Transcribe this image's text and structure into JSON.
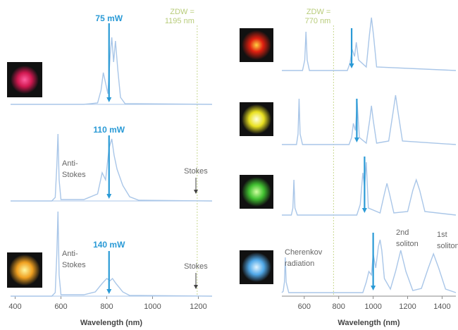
{
  "chart_data": [
    {
      "type": "line",
      "x_label": "Wavelength (nm)",
      "xlim": [
        380,
        1260
      ],
      "xticks": [
        400,
        600,
        800,
        1000,
        1200
      ],
      "zdw": 1195,
      "zdw_label": [
        "ZDW =",
        "1195 nm"
      ],
      "annotations": [
        {
          "lines": [
            "Anti-",
            "Stokes"
          ]
        },
        {
          "lines": [
            "Stokes"
          ]
        },
        {
          "lines": [
            "Anti-",
            "Stokes"
          ]
        },
        {
          "lines": [
            "Stokes"
          ]
        }
      ],
      "series": [
        {
          "name": "75 mW",
          "color": "#a9c6e8",
          "pump": 810,
          "x": [
            380,
            700,
            760,
            775,
            785,
            795,
            805,
            815,
            822,
            830,
            838,
            848,
            860,
            880,
            1260
          ],
          "values": [
            0,
            0,
            0.02,
            0.2,
            0.45,
            0.3,
            0.15,
            0.7,
            0.95,
            0.6,
            0.9,
            0.5,
            0.1,
            0.01,
            0
          ]
        },
        {
          "name": "110 mW",
          "color": "#a9c6e8",
          "pump": 810,
          "x": [
            380,
            560,
            575,
            582,
            587,
            592,
            600,
            700,
            760,
            780,
            795,
            810,
            822,
            832,
            845,
            870,
            900,
            940,
            1260
          ],
          "values": [
            0,
            0,
            0.05,
            0.5,
            0.95,
            0.3,
            0.02,
            0.02,
            0.1,
            0.4,
            0.3,
            0.75,
            0.88,
            0.65,
            0.45,
            0.22,
            0.06,
            0.01,
            0
          ]
        },
        {
          "name": "140 mW",
          "color": "#a9c6e8",
          "pump": 810,
          "x": [
            380,
            560,
            575,
            582,
            587,
            592,
            600,
            700,
            750,
            780,
            800,
            815,
            825,
            840,
            870,
            900,
            1260
          ],
          "values": [
            0,
            0,
            0.05,
            0.6,
            1.2,
            0.3,
            0.02,
            0.02,
            0.06,
            0.18,
            0.25,
            0.22,
            0.25,
            0.18,
            0.06,
            0.01,
            0
          ]
        }
      ]
    },
    {
      "type": "line",
      "x_label": "Wavelength (nm)",
      "xlim": [
        470,
        1480
      ],
      "xticks": [
        600,
        800,
        1000,
        1200,
        1400
      ],
      "zdw": 770,
      "zdw_label": [
        "ZDW =",
        "770 nm"
      ],
      "annotations": [
        {
          "lines": [
            "Cherenkov",
            "radiation"
          ]
        },
        {
          "lines": [
            "2nd",
            "soliton"
          ]
        },
        {
          "lines": [
            "1st",
            "soliton"
          ]
        }
      ],
      "series": [
        {
          "color": "#a9c6e8",
          "pump": 875,
          "x": [
            470,
            590,
            603,
            610,
            617,
            630,
            850,
            865,
            878,
            892,
            902,
            915,
            960,
            978,
            990,
            1002,
            1020,
            1480
          ],
          "values": [
            0,
            0,
            0.15,
            0.55,
            0.15,
            0,
            0,
            0.1,
            0.3,
            0.2,
            0.4,
            0.15,
            0.05,
            0.5,
            0.75,
            0.5,
            0.05,
            0
          ]
        },
        {
          "color": "#a9c6e8",
          "pump": 905,
          "x": [
            470,
            555,
            564,
            570,
            576,
            590,
            860,
            875,
            885,
            897,
            907,
            920,
            960,
            980,
            990,
            1000,
            1020,
            1090,
            1115,
            1130,
            1145,
            1170,
            1480
          ],
          "values": [
            0,
            0,
            0.15,
            0.65,
            0.15,
            0,
            0,
            0.1,
            0.3,
            0.2,
            0.6,
            0.1,
            0.02,
            0.35,
            0.55,
            0.35,
            0.02,
            0.05,
            0.45,
            0.7,
            0.45,
            0.05,
            0
          ]
        },
        {
          "color": "#a9c6e8",
          "pump": 950,
          "x": [
            470,
            525,
            534,
            540,
            546,
            560,
            905,
            925,
            940,
            950,
            960,
            972,
            1040,
            1065,
            1080,
            1095,
            1120,
            1200,
            1230,
            1250,
            1270,
            1300,
            1480
          ],
          "values": [
            0,
            0,
            0.1,
            0.5,
            0.1,
            0,
            0,
            0.15,
            0.6,
            0.4,
            0.75,
            0.1,
            0.03,
            0.3,
            0.45,
            0.3,
            0.03,
            0.05,
            0.35,
            0.5,
            0.35,
            0.05,
            0
          ]
        },
        {
          "color": "#a9c6e8",
          "pump": 1000,
          "x": [
            470,
            478,
            485,
            490,
            495,
            510,
            940,
            960,
            975,
            990,
            1000,
            1015,
            1030,
            1040,
            1050,
            1065,
            1100,
            1130,
            1160,
            1190,
            1230,
            1280,
            1320,
            1350,
            1380,
            1420,
            1480
          ],
          "values": [
            0,
            0.02,
            0.15,
            0.5,
            0.15,
            0,
            0,
            0.15,
            0.3,
            0.25,
            0.55,
            0.35,
            0.65,
            0.75,
            0.6,
            0.2,
            0.05,
            0.3,
            0.6,
            0.3,
            0.03,
            0.06,
            0.35,
            0.55,
            0.35,
            0.05,
            0
          ]
        }
      ]
    }
  ]
}
